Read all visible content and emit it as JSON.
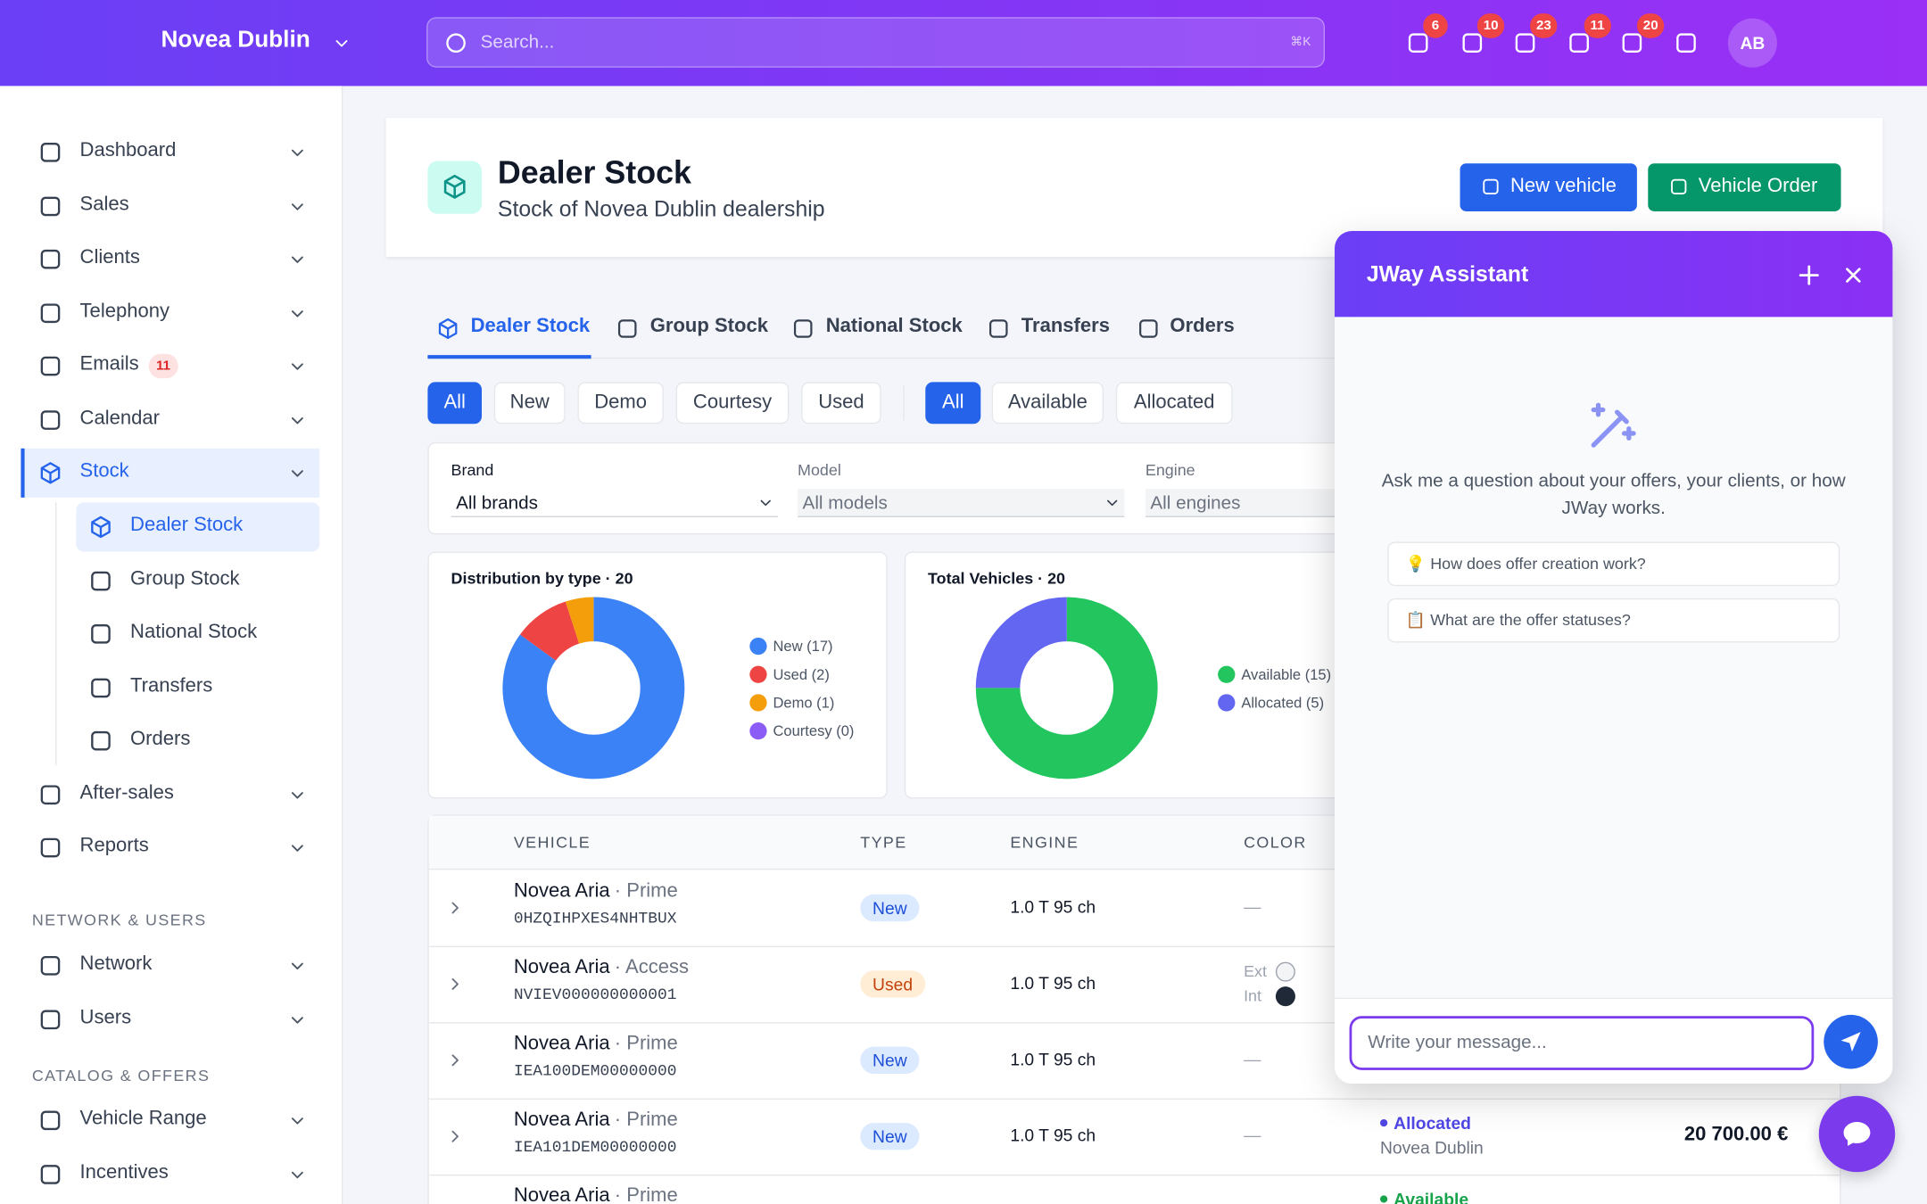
{
  "header": {
    "dealer": "Novea Dublin",
    "search_placeholder": "Search...",
    "shortcut": "⌘K",
    "badges": [
      6,
      10,
      23,
      11,
      20
    ],
    "avatar": "AB"
  },
  "sidebar": {
    "items": [
      {
        "label": "Dashboard"
      },
      {
        "label": "Sales"
      },
      {
        "label": "Clients"
      },
      {
        "label": "Telephony"
      },
      {
        "label": "Emails",
        "badge": 11
      },
      {
        "label": "Calendar"
      },
      {
        "label": "Stock"
      }
    ],
    "stock_children": [
      "Dealer Stock",
      "Group Stock",
      "National Stock",
      "Transfers",
      "Orders"
    ],
    "items_after": [
      {
        "label": "After-sales"
      },
      {
        "label": "Reports"
      }
    ],
    "sections": [
      {
        "title": "NETWORK & USERS",
        "items": [
          "Network",
          "Users"
        ]
      },
      {
        "title": "CATALOG & OFFERS",
        "items": [
          "Vehicle Range",
          "Incentives"
        ]
      }
    ]
  },
  "page": {
    "title": "Dealer Stock",
    "subtitle": "Stock of Novea Dublin dealership",
    "buttons": [
      "New vehicle",
      "Vehicle Order"
    ]
  },
  "tabs": [
    "Dealer Stock",
    "Group Stock",
    "National Stock",
    "Transfers",
    "Orders"
  ],
  "filters": {
    "type": [
      "All",
      "New",
      "Demo",
      "Courtesy",
      "Used"
    ],
    "status": [
      "All",
      "Available",
      "Allocated"
    ]
  },
  "selects": [
    {
      "label": "Brand",
      "value": "All brands"
    },
    {
      "label": "Model",
      "value": "All models"
    },
    {
      "label": "Engine",
      "value": "All engines"
    }
  ],
  "charts": [
    {
      "type": "donut",
      "title": "Distribution by type · 20",
      "segments": [
        {
          "label": "New (17)",
          "value": 17,
          "color": "#3b82f6"
        },
        {
          "label": "Used (2)",
          "value": 2,
          "color": "#ef4444"
        },
        {
          "label": "Demo (1)",
          "value": 1,
          "color": "#f59e0b"
        },
        {
          "label": "Courtesy (0)",
          "value": 0,
          "color": "#8b5cf6"
        }
      ]
    },
    {
      "type": "donut",
      "title": "Total Vehicles · 20",
      "segments": [
        {
          "label": "Available (15)",
          "value": 15,
          "color": "#22c55e"
        },
        {
          "label": "Allocated (5)",
          "value": 5,
          "color": "#6366f1"
        }
      ]
    }
  ],
  "table": {
    "columns": [
      "VEHICLE",
      "TYPE",
      "ENGINE",
      "COLOR"
    ],
    "rows": [
      {
        "name": "Novea Aria",
        "trim": "· Prime",
        "vin": "0HZQIHPXES4NHTBUX",
        "type": "New",
        "engine": "1.0 T 95 ch",
        "color": "—"
      },
      {
        "name": "Novea Aria",
        "trim": "· Access",
        "vin": "NVIEV000000000001",
        "type": "Used",
        "engine": "1.0 T 95 ch",
        "ext": "Ext",
        "int": "Int"
      },
      {
        "name": "Novea Aria",
        "trim": "· Prime",
        "vin": "IEA100DEM00000000",
        "type": "New",
        "engine": "1.0 T 95 ch",
        "color": "—"
      },
      {
        "name": "Novea Aria",
        "trim": "· Prime",
        "vin": "IEA101DEM00000000",
        "type": "New",
        "engine": "1.0 T 95 ch",
        "color": "—",
        "status": "Allocated",
        "location": "Novea Dublin",
        "price": "20 700.00 €"
      },
      {
        "name": "Novea Aria",
        "trim": "· Prime",
        "status": "Available"
      }
    ]
  },
  "assistant": {
    "title": "JWay Assistant",
    "intro": "Ask me a question about your offers, your clients, or how JWay works.",
    "suggestions": [
      "💡 How does offer creation work?",
      "📋 What are the offer statuses?"
    ],
    "placeholder": "Write your message..."
  }
}
